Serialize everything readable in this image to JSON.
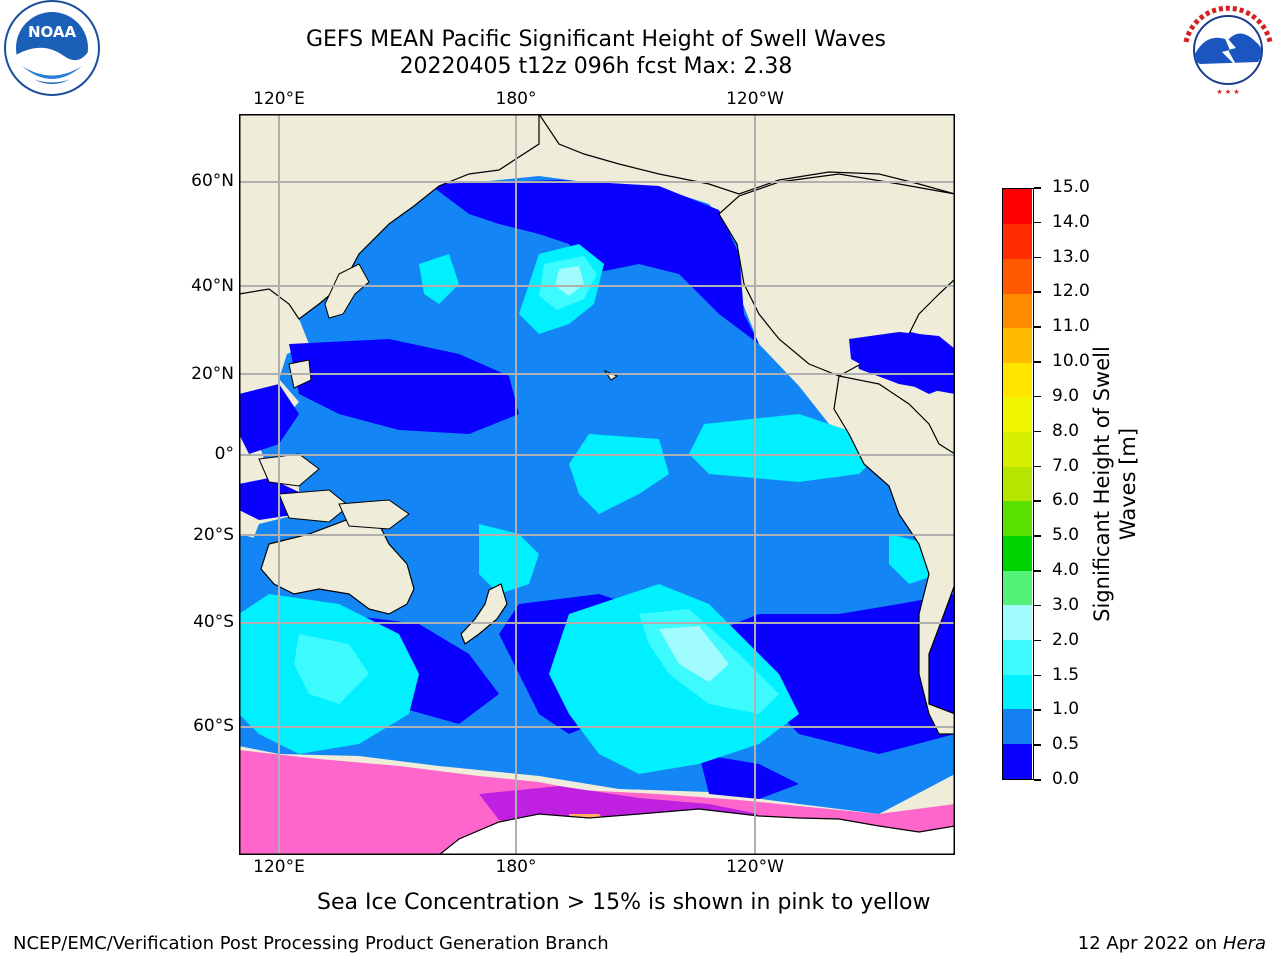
{
  "header": {
    "title_line1": "GEFS MEAN Pacific Significant Height of Swell Waves",
    "title_line2": "20220405 t12z 096h fcst   Max: 2.38"
  },
  "logos": {
    "left": {
      "name": "noaa-logo",
      "text": "NOAA"
    },
    "right": {
      "name": "nws-logo",
      "text": "NATIONAL WEATHER SERVICE"
    }
  },
  "map": {
    "lon_labels_top": [
      "120°E",
      "180°",
      "120°W"
    ],
    "lon_labels_bottom": [
      "120°E",
      "180°",
      "120°W"
    ],
    "lat_labels": [
      "60°N",
      "40°N",
      "20°N",
      "0°",
      "20°S",
      "40°S",
      "60°S"
    ],
    "land_color": "#efedda",
    "ocean_base_color": "#1485f5"
  },
  "colorbar": {
    "label_line1": "Significant Height of Swell",
    "label_line2": "Waves [m]",
    "ticks": [
      "0.0",
      "0.5",
      "1.0",
      "1.5",
      "2.0",
      "3.0",
      "4.0",
      "5.0",
      "6.0",
      "7.0",
      "8.0",
      "9.0",
      "10.0",
      "11.0",
      "12.0",
      "13.0",
      "14.0",
      "15.0"
    ],
    "colors": [
      "#0a00ff",
      "#1480f0",
      "#00f0ff",
      "#3dfaff",
      "#a0fcff",
      "#55f27a",
      "#00d400",
      "#5ae000",
      "#b4e600",
      "#d7f000",
      "#f0f500",
      "#ffe400",
      "#ffbb00",
      "#ff8c00",
      "#ff5a00",
      "#ff2d00",
      "#ff0000"
    ]
  },
  "caption": "Sea Ice Concentration > 15% is shown in pink to yellow",
  "footer": {
    "left": "NCEP/EMC/Verification Post Processing Product Generation Branch",
    "date": "12 Apr 2022 on ",
    "machine": "Hera"
  }
}
